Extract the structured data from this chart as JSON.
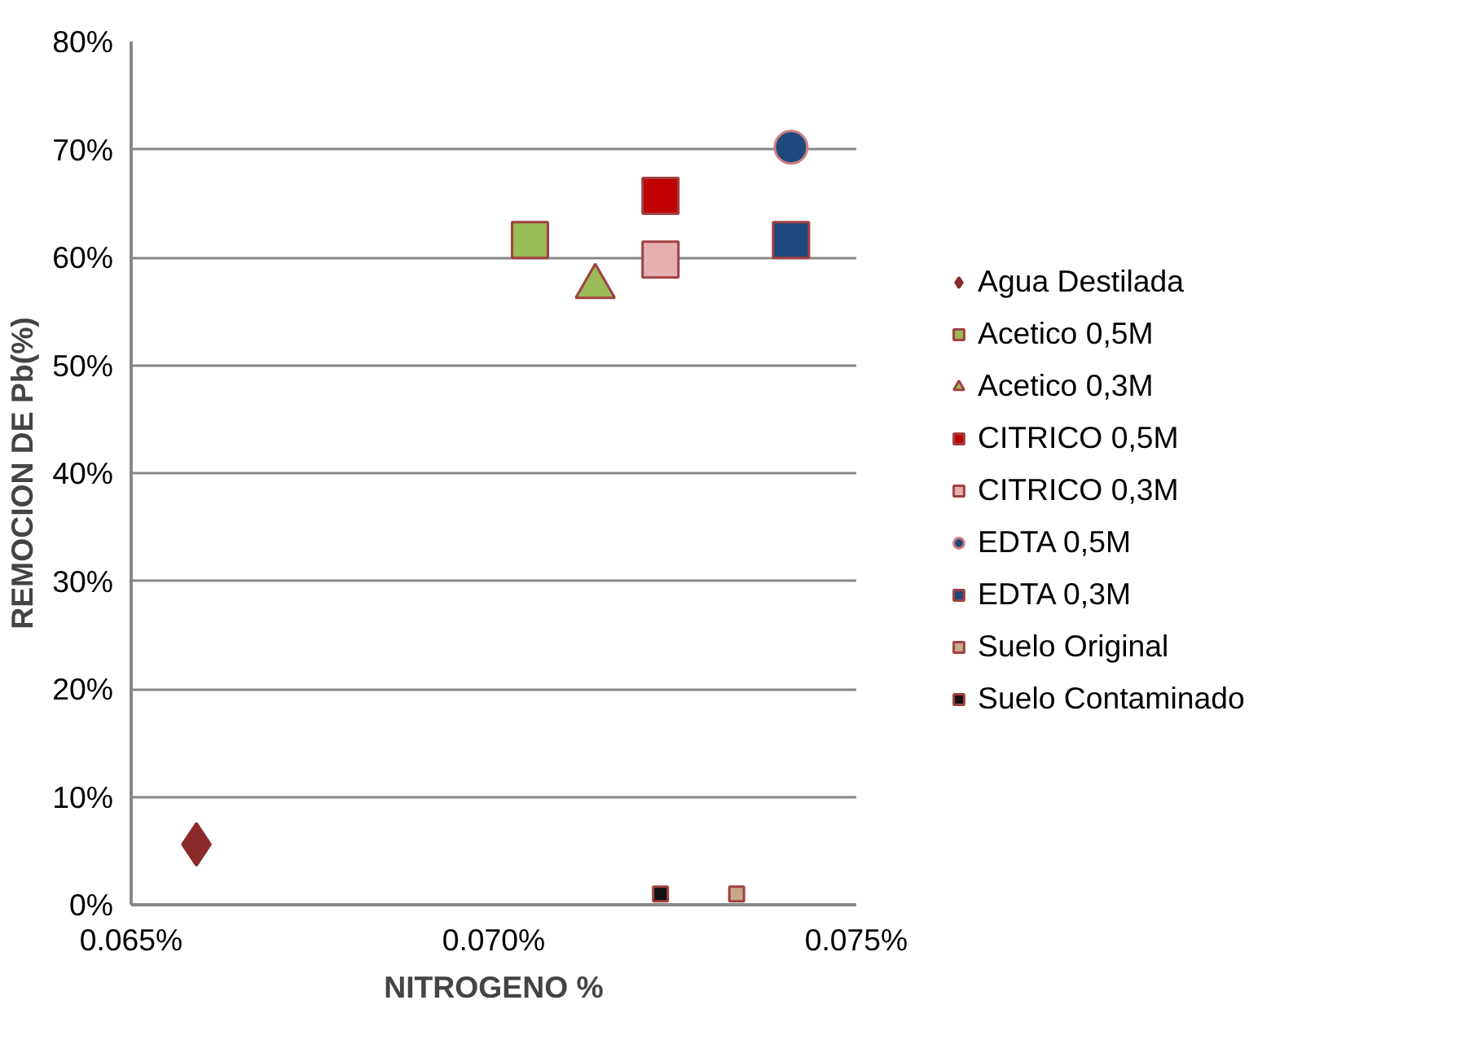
{
  "chart_data": {
    "type": "scatter",
    "xlabel": "NITROGENO %",
    "ylabel": "REMOCION DE Pb(%)",
    "xlim": [
      0.065,
      0.075
    ],
    "ylim": [
      0,
      80
    ],
    "xticks": [
      {
        "value": 0.065,
        "label": "0.065%"
      },
      {
        "value": 0.07,
        "label": "0.070%"
      },
      {
        "value": 0.075,
        "label": "0.075%"
      }
    ],
    "yticks": [
      {
        "value": 0,
        "label": "0%"
      },
      {
        "value": 10,
        "label": "10%"
      },
      {
        "value": 20,
        "label": "20%"
      },
      {
        "value": 30,
        "label": "30%"
      },
      {
        "value": 40,
        "label": "40%"
      },
      {
        "value": 50,
        "label": "50%"
      },
      {
        "value": 60,
        "label": "60%"
      },
      {
        "value": 70,
        "label": "70%"
      },
      {
        "value": 80,
        "label": "80%"
      }
    ],
    "grid": "y",
    "legend": "right",
    "series": [
      {
        "name": "Agua Destilada",
        "color": "#8b2a2a",
        "marker": "diamond",
        "x": [
          0.0659
        ],
        "values": [
          5.6
        ]
      },
      {
        "name": "Acetico 0,5M",
        "color": "#9bbb59",
        "marker": "square",
        "x": [
          0.0705
        ],
        "values": [
          61.6
        ]
      },
      {
        "name": "Acetico 0,3M",
        "color": "#9bbb59",
        "marker": "triangle",
        "x": [
          0.0714
        ],
        "values": [
          57.3
        ]
      },
      {
        "name": "CITRICO 0,5M",
        "color": "#c00000",
        "marker": "square",
        "x": [
          0.0723
        ],
        "values": [
          65.7
        ]
      },
      {
        "name": "CITRICO 0,3M",
        "color": "#e6b0b0",
        "marker": "square",
        "x": [
          0.0723
        ],
        "values": [
          59.8
        ]
      },
      {
        "name": "EDTA 0,5M",
        "color": "#1f497d",
        "marker": "circle",
        "x": [
          0.0741
        ],
        "values": [
          70.2
        ]
      },
      {
        "name": "EDTA 0,3M",
        "color": "#1f497d",
        "marker": "square",
        "x": [
          0.0741
        ],
        "values": [
          61.6
        ]
      },
      {
        "name": "Suelo Original",
        "color": "#c8a888",
        "marker": "square",
        "x": [
          0.07335
        ],
        "values": [
          1.0
        ]
      },
      {
        "name": "Suelo Contaminado",
        "color": "#111111",
        "marker": "square",
        "x": [
          0.0723
        ],
        "values": [
          1.0
        ]
      }
    ]
  }
}
